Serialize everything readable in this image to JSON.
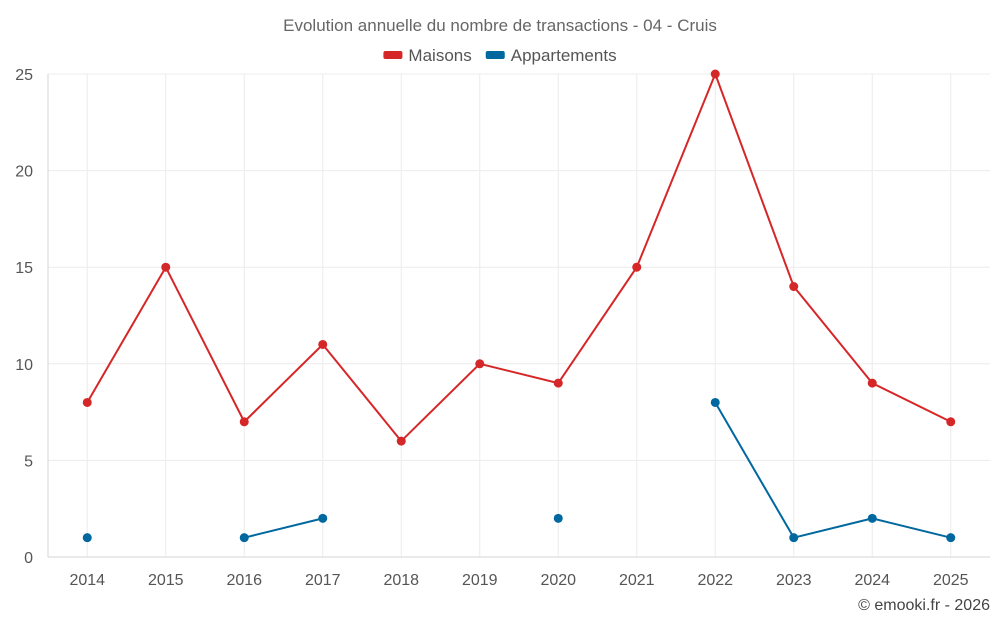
{
  "chart_data": {
    "type": "line",
    "title": "Evolution annuelle du nombre de transactions - 04 - Cruis",
    "xlabel": "",
    "ylabel": "",
    "categories": [
      "2014",
      "2015",
      "2016",
      "2017",
      "2018",
      "2019",
      "2020",
      "2021",
      "2022",
      "2023",
      "2024",
      "2025"
    ],
    "ylim": [
      0,
      25
    ],
    "yticks": [
      0,
      5,
      10,
      15,
      20,
      25
    ],
    "grid": true,
    "legend_position": "top-center",
    "series": [
      {
        "name": "Maisons",
        "color": "#d62728",
        "values": [
          8,
          15,
          7,
          11,
          6,
          10,
          9,
          15,
          25,
          14,
          9,
          7
        ]
      },
      {
        "name": "Appartements",
        "color": "#00689f",
        "values": [
          1,
          null,
          1,
          2,
          null,
          null,
          2,
          null,
          8,
          1,
          2,
          1
        ]
      }
    ]
  },
  "credit": "© emooki.fr - 2026"
}
